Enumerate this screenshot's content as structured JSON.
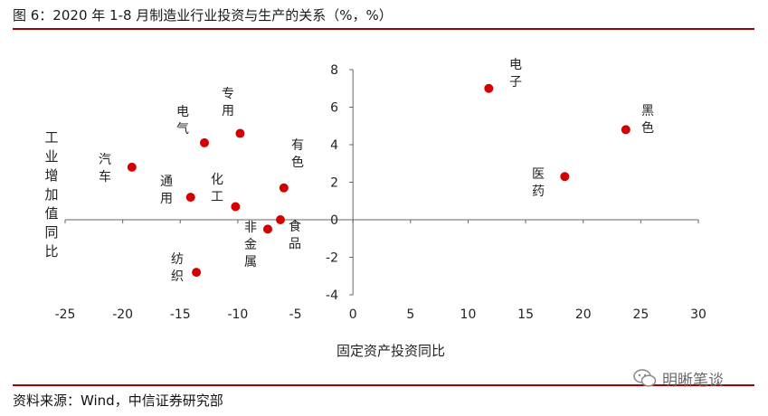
{
  "title": "图 6：2020 年 1-8 月制造业行业投资与生产的关系（%，%）",
  "source": "资料来源：Wind，中信证券研究部",
  "watermark": "明晰笔谈",
  "colors": {
    "accent": "#a50000",
    "point": "#d40000"
  },
  "chart_data": {
    "type": "scatter",
    "xlabel": "固定资产投资同比",
    "ylabel": "工业增加值同比",
    "xlim": [
      -25,
      30
    ],
    "ylim": [
      -4,
      8
    ],
    "x_ticks": [
      -25,
      -20,
      -15,
      -10,
      -5,
      0,
      5,
      10,
      15,
      20,
      25,
      30
    ],
    "y_ticks": [
      -4,
      -2,
      0,
      2,
      4,
      6,
      8
    ],
    "grid": false,
    "points": [
      {
        "label": "电子",
        "x": 11.8,
        "y": 7.0
      },
      {
        "label": "黑色",
        "x": 23.7,
        "y": 4.8
      },
      {
        "label": "医药",
        "x": 18.4,
        "y": 2.3
      },
      {
        "label": "专用",
        "x": -9.8,
        "y": 4.6
      },
      {
        "label": "电气",
        "x": -12.9,
        "y": 4.1
      },
      {
        "label": "汽车",
        "x": -19.2,
        "y": 2.8
      },
      {
        "label": "有色",
        "x": -6.0,
        "y": 1.7
      },
      {
        "label": "通用",
        "x": -14.1,
        "y": 1.2
      },
      {
        "label": "化工",
        "x": -10.2,
        "y": 0.7
      },
      {
        "label": "食品",
        "x": -6.3,
        "y": 0.0
      },
      {
        "label": "非金属",
        "x": -7.4,
        "y": -0.5
      },
      {
        "label": "纺织",
        "x": -13.6,
        "y": -2.8
      }
    ]
  }
}
